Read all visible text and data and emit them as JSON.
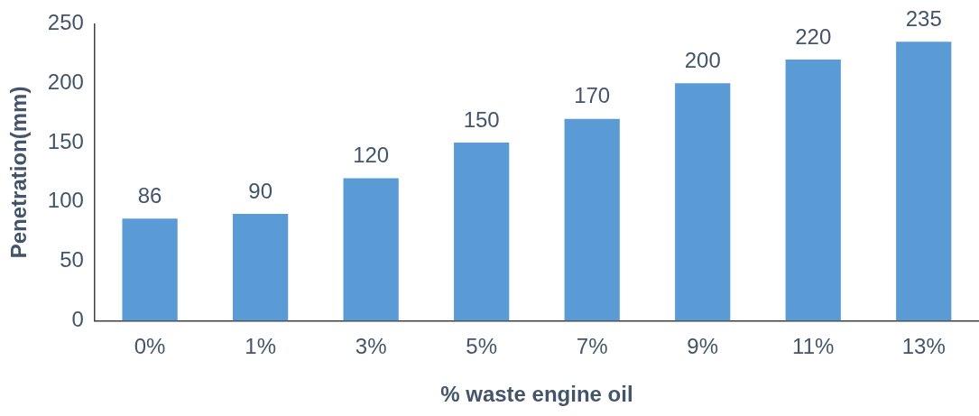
{
  "chart_data": {
    "type": "bar",
    "xlabel": "% waste engine oil",
    "ylabel": "Penetration(mm)",
    "categories": [
      "0%",
      "1%",
      "3%",
      "5%",
      "7%",
      "9%",
      "11%",
      "13%"
    ],
    "values": [
      86,
      90,
      120,
      150,
      170,
      200,
      220,
      235
    ],
    "color": "#5b9bd5",
    "ylim": [
      0,
      250
    ],
    "yticks": [
      0,
      50,
      100,
      150,
      200,
      250
    ],
    "grid": false,
    "legend": false,
    "data_labels": true
  }
}
